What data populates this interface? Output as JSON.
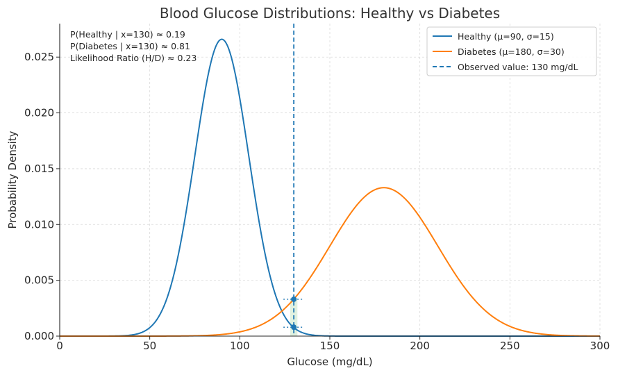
{
  "chart_data": {
    "type": "line",
    "title": "Blood Glucose Distributions: Healthy vs Diabetes",
    "xlabel": "Glucose (mg/dL)",
    "ylabel": "Probability Density",
    "xlim": [
      0,
      300
    ],
    "ylim": [
      0,
      0.028
    ],
    "xticks": [
      0,
      50,
      100,
      150,
      200,
      250,
      300
    ],
    "xtick_labels": [
      "0",
      "50",
      "100",
      "150",
      "200",
      "250",
      "300"
    ],
    "yticks": [
      0,
      0.005,
      0.01,
      0.015,
      0.02,
      0.025
    ],
    "ytick_labels": [
      "0.000",
      "0.005",
      "0.010",
      "0.015",
      "0.020",
      "0.025"
    ],
    "grid": true,
    "legend_position": "top-right",
    "series": [
      {
        "name": "Healthy (μ=90, σ=15)",
        "distribution": "normal",
        "mu": 90,
        "sigma": 15,
        "color": "#1f77b4"
      },
      {
        "name": "Diabetes (μ=180, σ=30)",
        "distribution": "normal",
        "mu": 180,
        "sigma": 30,
        "color": "#ff7f0e"
      }
    ],
    "observed": {
      "label": "Observed value: 130 mg/dL",
      "x": 130,
      "color": "#1f77b4"
    },
    "markers": [
      {
        "name": "diabetes-density-at-observed",
        "x": 130,
        "y": 0.0033
      },
      {
        "name": "healthy-density-at-observed",
        "x": 130,
        "y": 0.0008
      }
    ],
    "highlight_band": {
      "x_from": 128,
      "x_to": 132,
      "color": "#2ca02c"
    },
    "annotations": [
      "P(Healthy | x=130) ≈ 0.19",
      "P(Diabetes | x=130) ≈ 0.81",
      "Likelihood Ratio (H/D) ≈ 0.23"
    ]
  }
}
